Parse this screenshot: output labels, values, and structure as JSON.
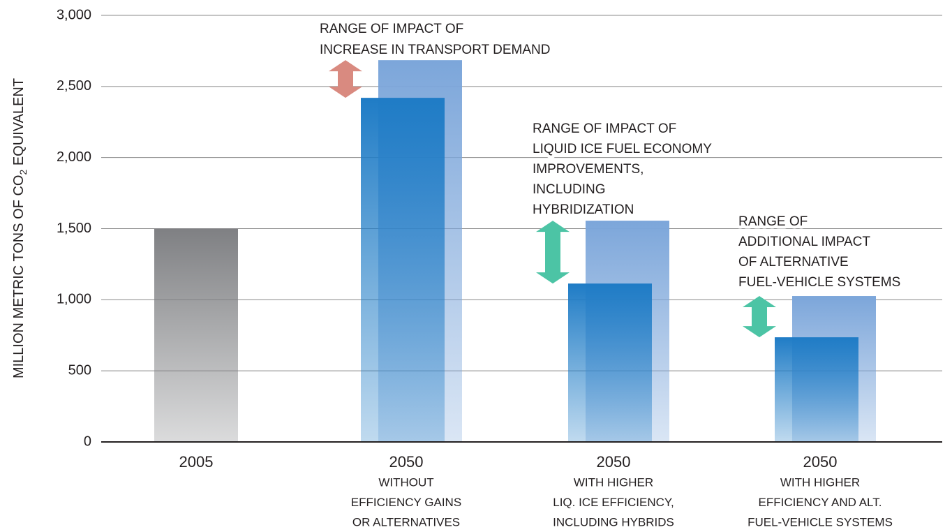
{
  "chart_data": {
    "type": "bar",
    "y_label": [
      "MILLION METRIC TONS OF CO",
      "2",
      " EQUIVALENT"
    ],
    "categories": [
      "2005",
      "2050",
      "2050",
      "2050"
    ],
    "category_descriptions": [
      [],
      [
        "WITHOUT",
        "EFFICIENCY GAINS",
        "OR ALTERNATIVES"
      ],
      [
        "WITH HIGHER",
        "LIQ. ICE EFFICIENCY,",
        "INCLUDING HYBRIDS"
      ],
      [
        "WITH HIGHER",
        "EFFICIENCY AND ALT.",
        "FUEL-VEHICLE SYSTEMS"
      ]
    ],
    "series": [
      {
        "colors": [
          "#7f8083",
          "#1f7cc6",
          "#1f7cc6",
          "#1f7cc6"
        ],
        "values": [
          1500,
          2420,
          1114,
          736
        ]
      },
      {
        "color": "#7ca6da",
        "values": [
          null,
          2685,
          1556,
          1026
        ]
      }
    ],
    "annotations": [
      {
        "lines": [
          "RANGE OF IMPACT OF",
          "INCREASE IN TRANSPORT DEMAND"
        ],
        "color": "#d98a80"
      },
      {
        "lines": [
          "RANGE OF IMPACT OF",
          "LIQUID ICE FUEL ECONOMY",
          "IMPROVEMENTS,",
          "INCLUDING",
          "HYBRIDIZATION"
        ],
        "color": "#4cc4a5"
      },
      {
        "lines": [
          "RANGE OF",
          "ADDITIONAL IMPACT",
          "OF ALTERNATIVE",
          "FUEL-VEHICLE SYSTEMS"
        ],
        "color": "#4cc4a5"
      }
    ],
    "ylim": [
      0,
      3000
    ],
    "yticks": [
      0,
      500,
      {
        "value": 1000,
        "label": "1,000"
      },
      {
        "value": 1500,
        "label": "1,500"
      },
      {
        "value": 2000,
        "label": "2,000"
      },
      {
        "value": 2500,
        "label": "2,500"
      },
      {
        "value": 3000,
        "label": "3,000"
      }
    ],
    "grid": true
  }
}
